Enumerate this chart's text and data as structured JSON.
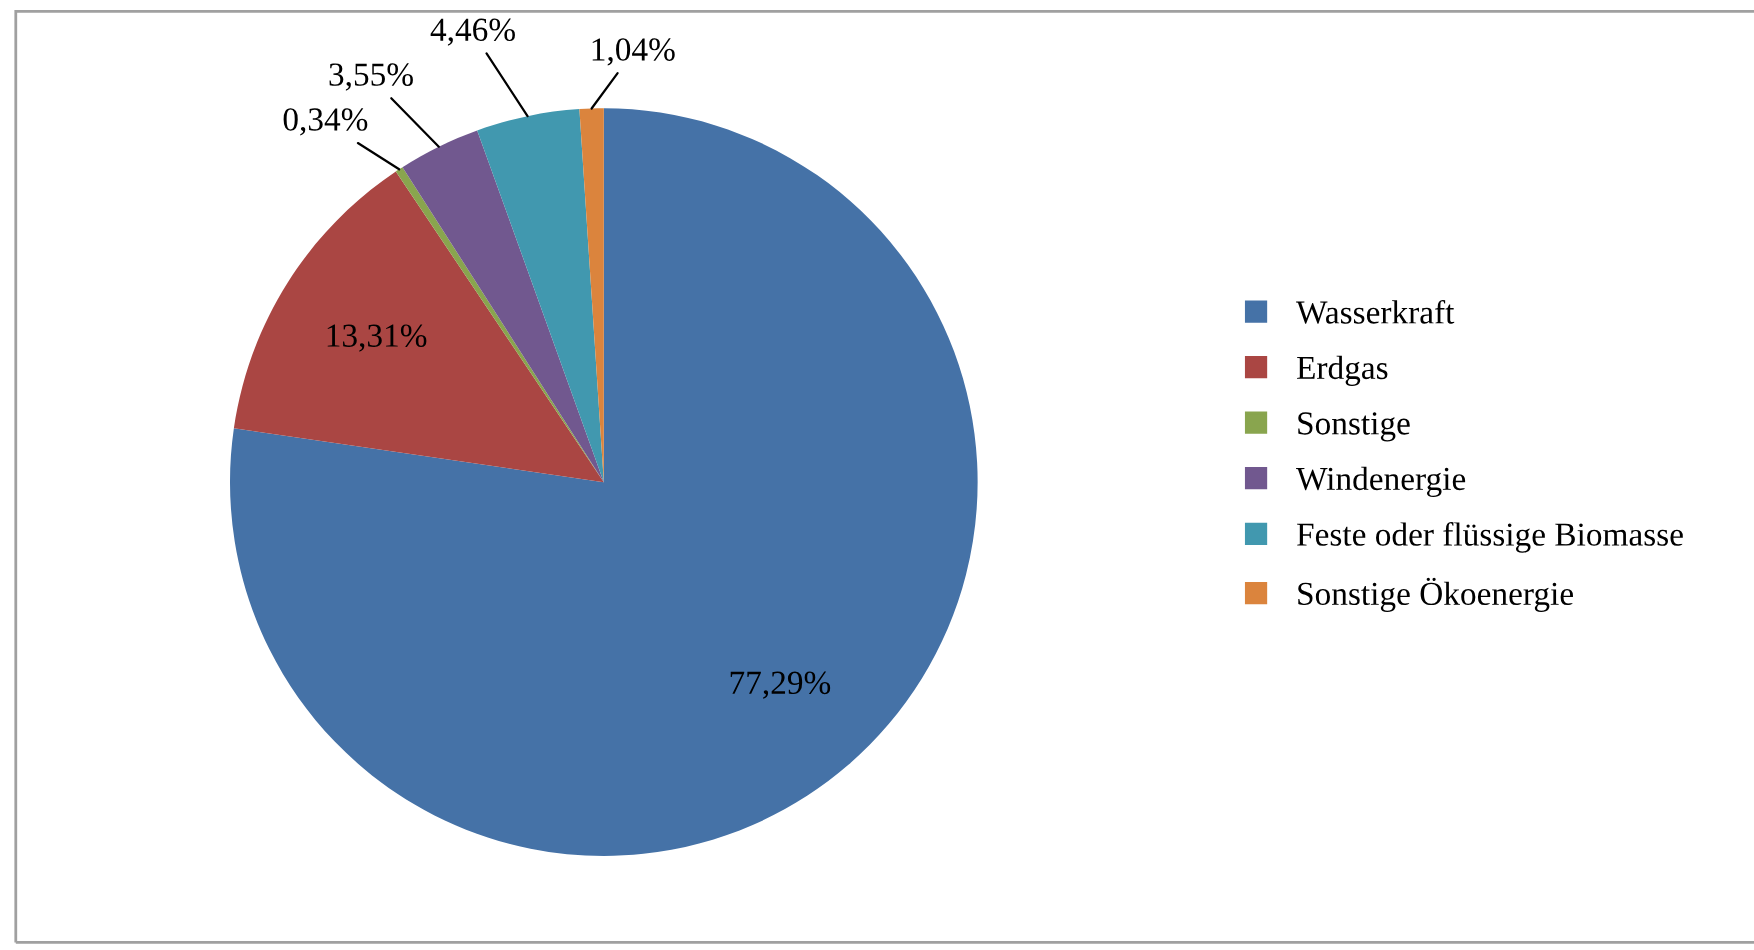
{
  "chart_data": {
    "type": "pie",
    "categories": [
      "Wasserkraft",
      "Erdgas",
      "Sonstige",
      "Windenergie",
      "Feste oder flüssige Biomasse",
      "Sonstige Ökoenergie"
    ],
    "values": [
      77.29,
      13.31,
      0.34,
      3.55,
      4.46,
      1.04
    ],
    "value_labels": [
      "77,29%",
      "13,31%",
      "0,34%",
      "3,55%",
      "4,46%",
      "1,04%"
    ],
    "colors": [
      "#4572a7",
      "#aa4643",
      "#89a54e",
      "#71588f",
      "#4198af",
      "#db843d"
    ],
    "legend": "right"
  }
}
